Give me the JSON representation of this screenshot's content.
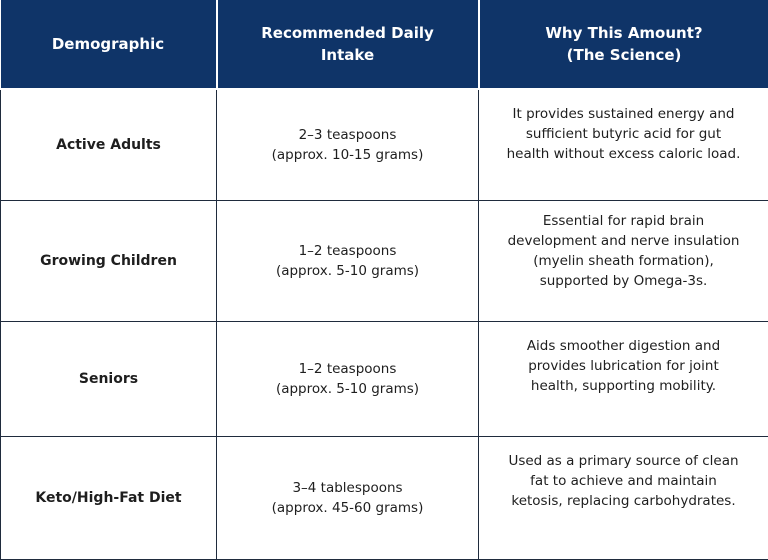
{
  "table": {
    "headers": {
      "demographic": "Demographic",
      "intake_line1": "Recommended Daily",
      "intake_line2": "Intake",
      "why_line1": "Why This Amount?",
      "why_line2": "(The Science)"
    },
    "rows": [
      {
        "demographic": "Active Adults",
        "intake": [
          "2–3 teaspoons",
          "(approx. 10-15 grams)"
        ],
        "why": [
          "It provides sustained energy and",
          "sufficient butyric acid for gut",
          "health without excess caloric load."
        ]
      },
      {
        "demographic": "Growing Children",
        "intake": [
          "1–2 teaspoons",
          "(approx. 5-10 grams)"
        ],
        "why": [
          "Essential for rapid brain",
          "development and nerve insulation",
          "(myelin sheath formation),",
          "supported by Omega-3s."
        ]
      },
      {
        "demographic": "Seniors",
        "intake": [
          "1–2 teaspoons",
          "(approx. 5-10 grams)"
        ],
        "why": [
          "Aids smoother digestion and",
          "provides lubrication for joint",
          "health, supporting mobility."
        ]
      },
      {
        "demographic": "Keto/High-Fat Diet",
        "intake": [
          "3–4 tablespoons",
          "(approx. 45-60 grams)"
        ],
        "why": [
          "Used as a primary source of clean",
          "fat to achieve and maintain",
          "ketosis, replacing carbohydrates."
        ]
      }
    ]
  },
  "colors": {
    "header_background": "#0f3468",
    "header_text": "#ffffff",
    "grid_lines": "#1f2b3d"
  }
}
